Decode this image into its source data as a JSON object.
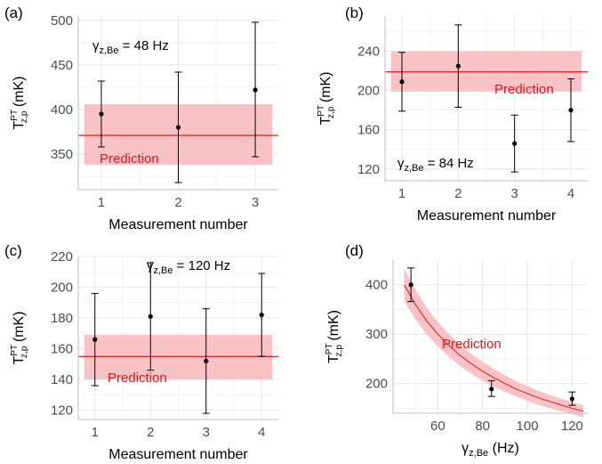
{
  "chart_data": [
    {
      "panel_label": "(a)",
      "type": "scatter",
      "xlabel": "Measurement number",
      "ylabel": {
        "main": "T",
        "sup": "PT",
        "sub": "z,p",
        "unit": " (mK)"
      },
      "x": [
        1,
        2,
        3
      ],
      "y": [
        395,
        380,
        422
      ],
      "yerr_low": [
        358,
        318,
        347
      ],
      "yerr_high": [
        432,
        442,
        498
      ],
      "prediction": {
        "value": 371,
        "band": [
          338,
          406
        ],
        "label": "Prediction"
      },
      "annotation": {
        "main": "γ",
        "sub": "z,Be",
        "rest": " = 48 Hz"
      },
      "xlim": [
        0.7,
        3.3
      ],
      "ylim": [
        310,
        505
      ],
      "xticks": [
        1,
        2,
        3
      ],
      "yticks": [
        350,
        400,
        450,
        500
      ],
      "grid": true
    },
    {
      "panel_label": "(b)",
      "type": "scatter",
      "xlabel": "Measurement number",
      "ylabel": {
        "main": "T",
        "sup": "PT",
        "sub": "z,p",
        "unit": " (mK)"
      },
      "x": [
        1,
        2,
        3,
        4
      ],
      "y": [
        209,
        225,
        146,
        180
      ],
      "yerr_low": [
        179,
        183,
        117,
        148
      ],
      "yerr_high": [
        239,
        267,
        175,
        212
      ],
      "prediction": {
        "value": 219,
        "band": [
          199,
          240
        ],
        "label": "Prediction"
      },
      "annotation": {
        "main": "γ",
        "sub": "z,Be",
        "rest": " = 84 Hz"
      },
      "xlim": [
        0.7,
        4.3
      ],
      "ylim": [
        108,
        276
      ],
      "xticks": [
        1,
        2,
        3,
        4
      ],
      "yticks": [
        120,
        160,
        200,
        240
      ],
      "grid": true
    },
    {
      "panel_label": "(c)",
      "type": "scatter",
      "xlabel": "Measurement number",
      "ylabel": {
        "main": "T",
        "sup": "PT",
        "sub": "z,p",
        "unit": " (mK)"
      },
      "x": [
        1,
        2,
        3,
        4
      ],
      "y": [
        166,
        181,
        152,
        182
      ],
      "yerr_low": [
        136,
        146,
        118,
        155
      ],
      "yerr_high": [
        196,
        216,
        186,
        209
      ],
      "prediction": {
        "value": 155,
        "band": [
          140,
          169
        ],
        "label": "Prediction"
      },
      "annotation": {
        "main": "γ",
        "sub": "z,Be",
        "rest": " = 120 Hz"
      },
      "xlim": [
        0.7,
        4.3
      ],
      "ylim": [
        114,
        220
      ],
      "xticks": [
        1,
        2,
        3,
        4
      ],
      "yticks": [
        120,
        140,
        160,
        180,
        200,
        220
      ],
      "grid": true
    },
    {
      "panel_label": "(d)",
      "type": "scatter",
      "xlabel": {
        "main": "γ",
        "sub": "z,Be",
        "rest": " (Hz)"
      },
      "ylabel": {
        "main": "T",
        "sup": "PT",
        "sub": "z,p",
        "unit": " (mK)"
      },
      "x": [
        48,
        84,
        120
      ],
      "y": [
        400,
        189,
        169
      ],
      "yerr_low": [
        366,
        174,
        156
      ],
      "yerr_high": [
        434,
        206,
        183
      ],
      "prediction": {
        "label": "Prediction",
        "x": [
          45,
          50,
          55,
          60,
          65,
          70,
          75,
          80,
          85,
          90,
          95,
          100,
          105,
          110,
          115,
          120,
          125
        ],
        "y": [
          400,
          360,
          327,
          300,
          277,
          257,
          240,
          225,
          212,
          200,
          189,
          180,
          171,
          164,
          157,
          150,
          144
        ],
        "band_low": [
          367,
          330,
          300,
          275,
          254,
          236,
          220,
          206,
          194,
          183,
          174,
          165,
          157,
          150,
          144,
          138,
          132
        ],
        "band_high": [
          433,
          390,
          354,
          325,
          300,
          278,
          260,
          244,
          230,
          217,
          205,
          195,
          185,
          177,
          170,
          163,
          156
        ]
      },
      "xlim": [
        40,
        127
      ],
      "ylim": [
        140,
        450
      ],
      "xticks": [
        60,
        80,
        100,
        120
      ],
      "yticks": [
        200,
        300,
        400
      ],
      "grid": true
    }
  ],
  "colors": {
    "prediction_line": "#e8141b",
    "prediction_band": "#f9c3c5",
    "prediction_text": "#e8141b",
    "grid": "#e6e6e6",
    "axis": "#bdbdbd",
    "points": "#000000"
  }
}
